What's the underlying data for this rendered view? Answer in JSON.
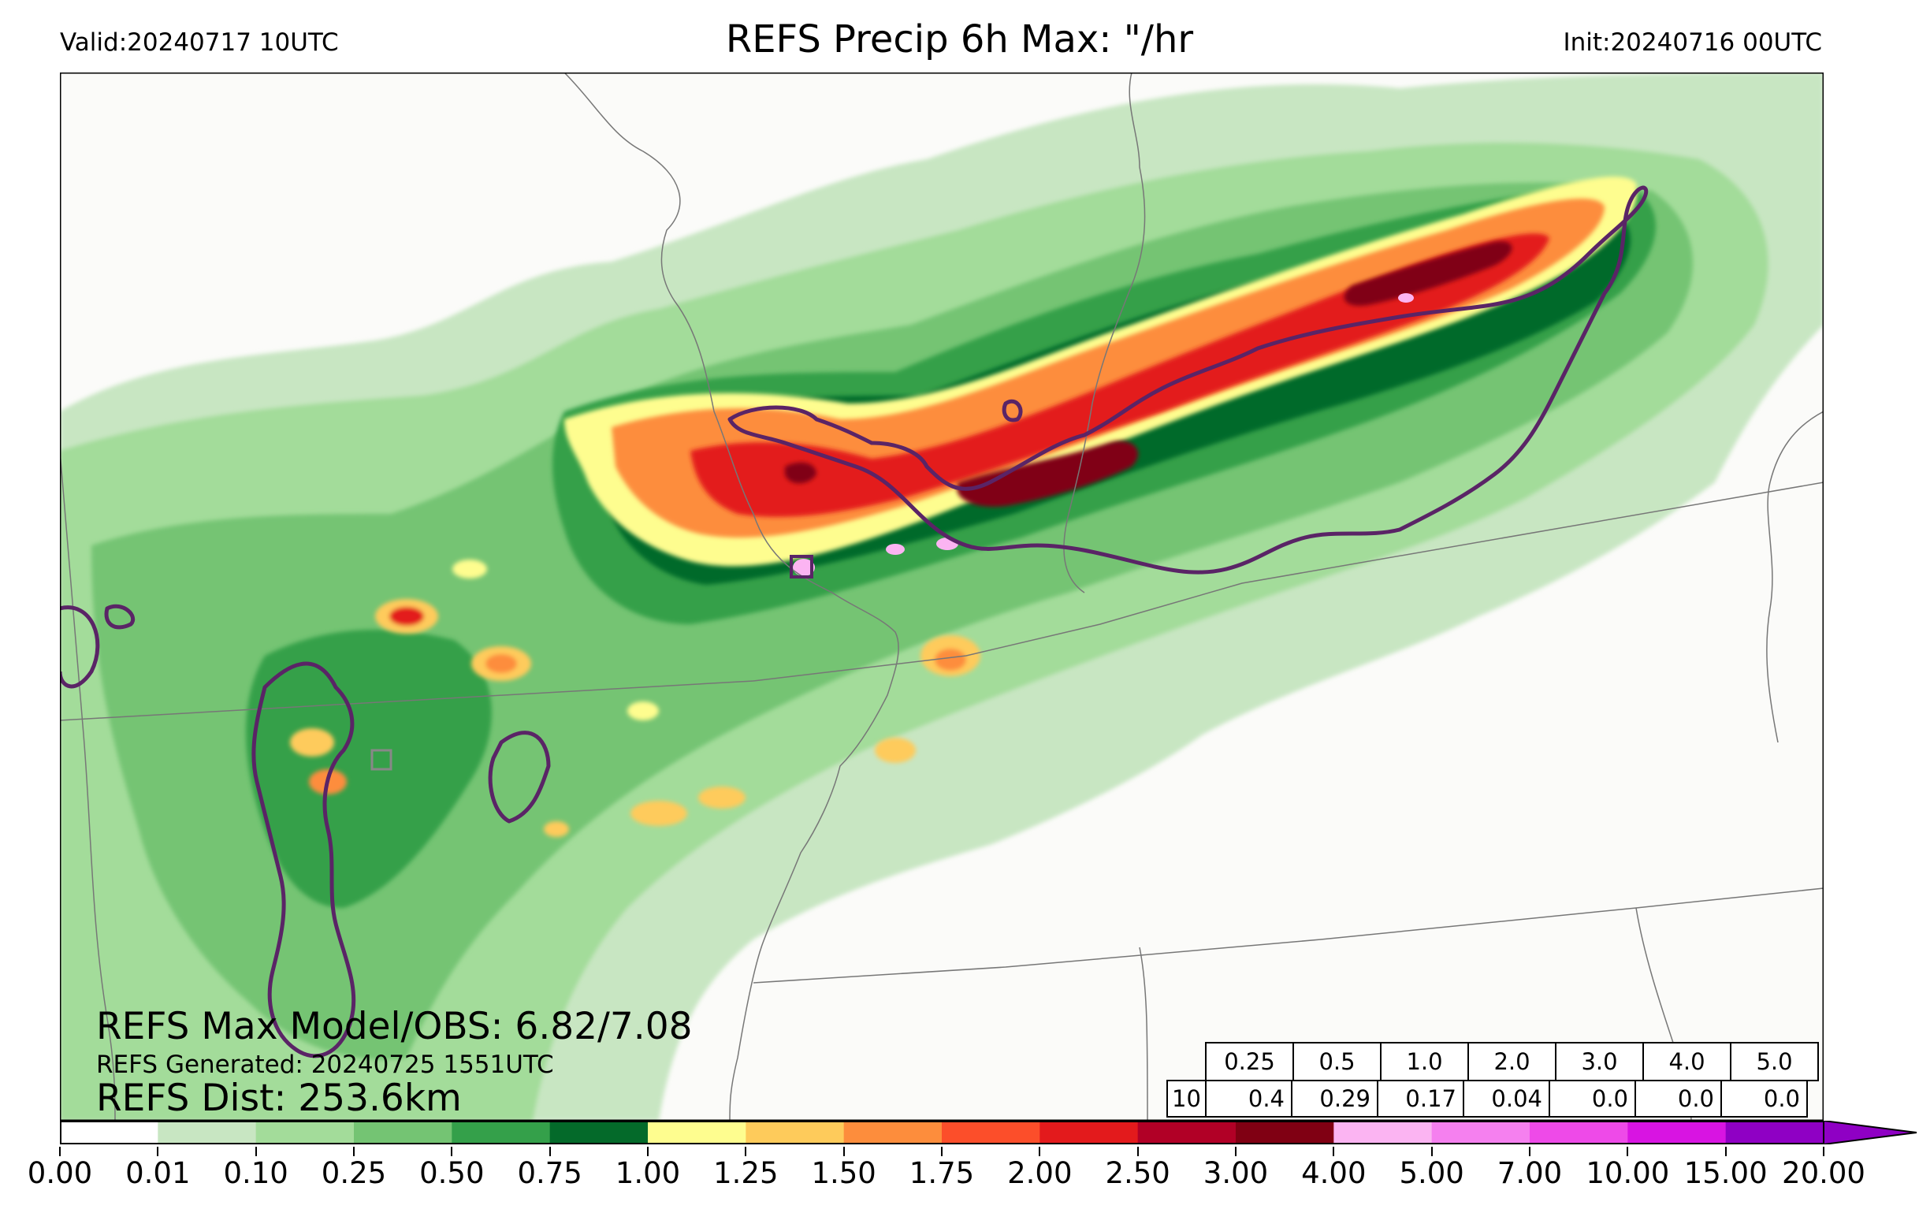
{
  "header": {
    "valid": "Valid:20240717 10UTC",
    "title": "REFS Precip 6h Max: \"/hr",
    "init": "Init:20240716 00UTC"
  },
  "stats": {
    "max_model_obs": "REFS Max Model/OBS: 6.82/7.08",
    "generated": "REFS Generated: 20240725 1551UTC",
    "dist": "REFS Dist: 253.6km"
  },
  "prob_table": {
    "thresholds": [
      "0.25",
      "0.5",
      "1.0",
      "2.0",
      "3.0",
      "4.0",
      "5.0"
    ],
    "row_label": "10",
    "values": [
      "0.4",
      "0.29",
      "0.17",
      "0.04",
      "0.0",
      "0.0",
      "0.0"
    ]
  },
  "colorbar": {
    "ticks": [
      "0.00",
      "0.01",
      "0.10",
      "0.25",
      "0.50",
      "0.75",
      "1.00",
      "1.25",
      "1.50",
      "1.75",
      "2.00",
      "2.50",
      "3.00",
      "4.00",
      "5.00",
      "7.00",
      "10.00",
      "15.00",
      "20.00"
    ],
    "colors": [
      "#ffffff",
      "#c8e6c2",
      "#a3dc9a",
      "#74c473",
      "#34a04a",
      "#046a2a",
      "#fefd8f",
      "#fecb5b",
      "#fd8d3c",
      "#fc4e2a",
      "#e31a1c",
      "#b10026",
      "#800013",
      "#fbb4f2",
      "#f580ef",
      "#ee4ae8",
      "#d814e2",
      "#8f00c4"
    ]
  },
  "map_colors": {
    "background": "#fbfbf9",
    "boundaries": "#777777",
    "obs_contour": "#5a2466"
  }
}
